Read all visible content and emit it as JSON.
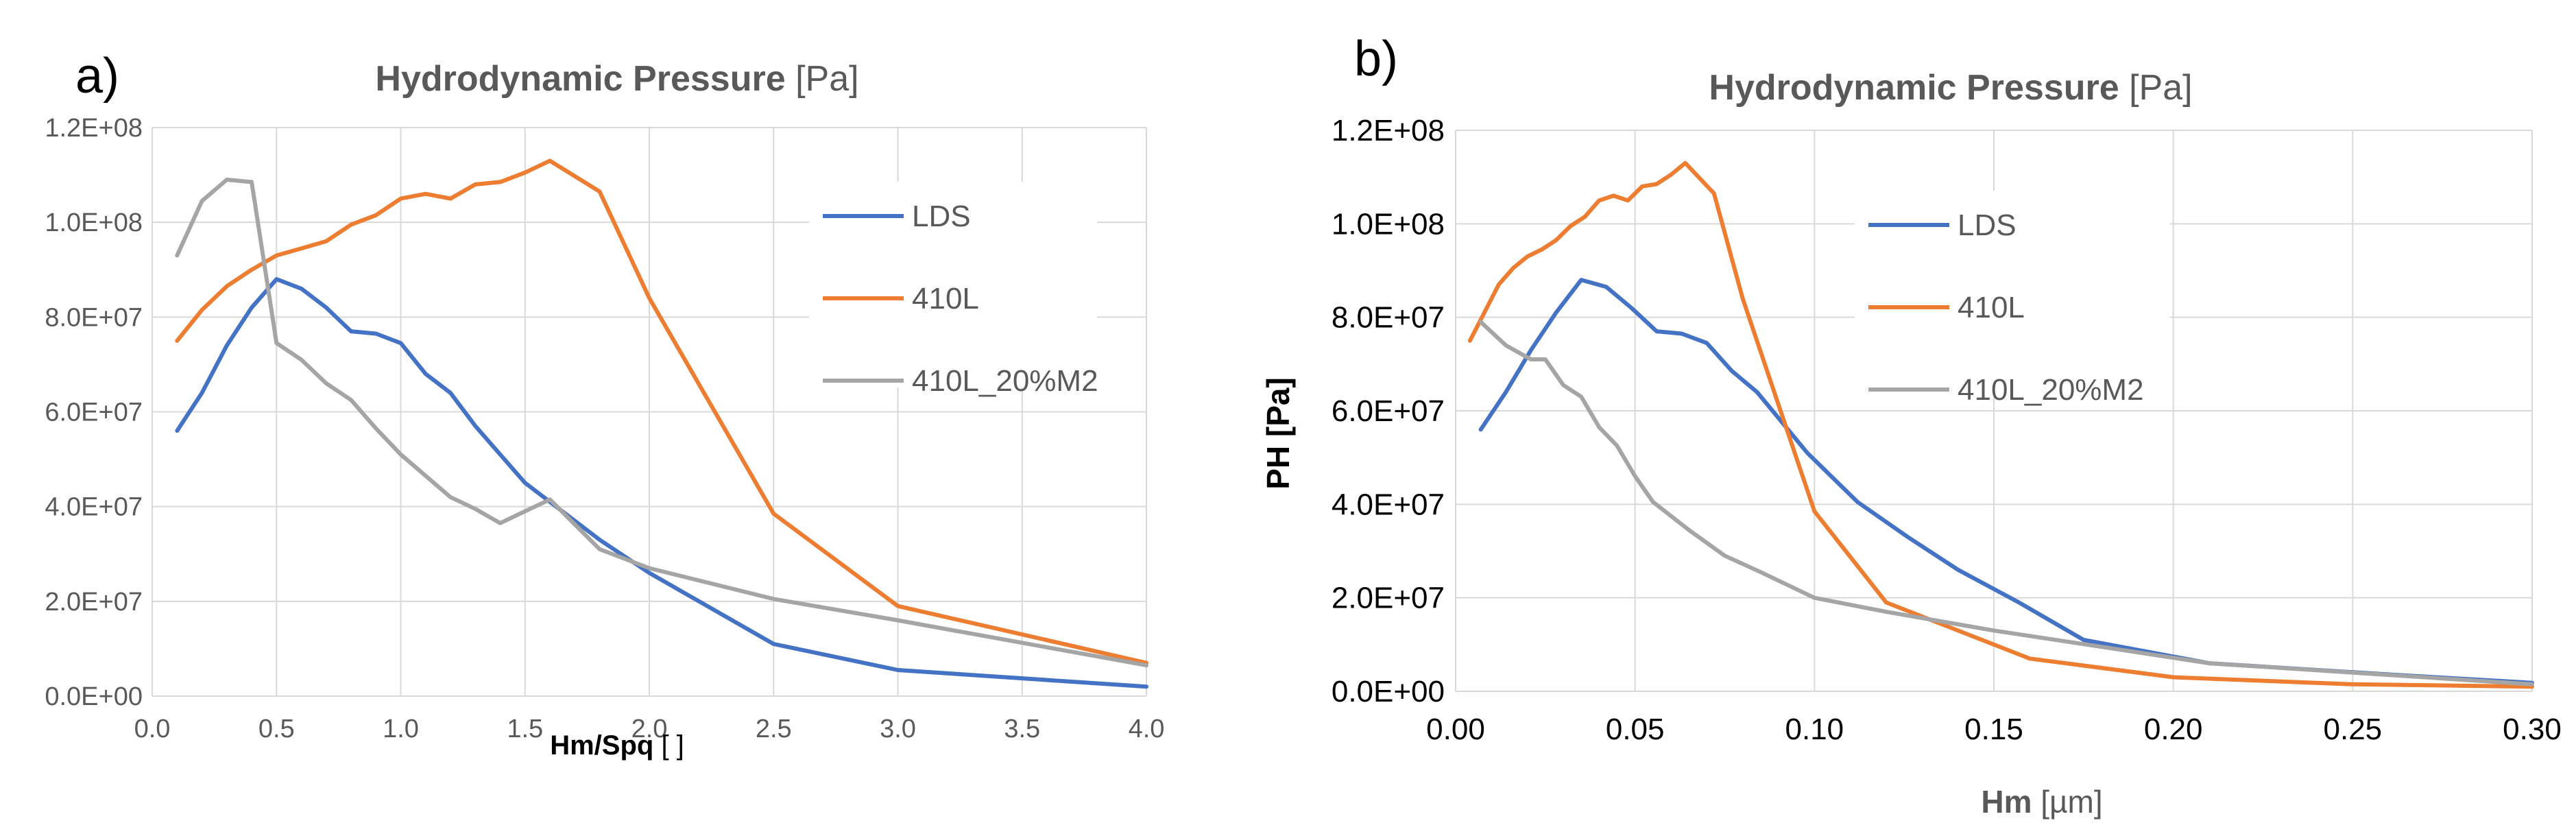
{
  "chart_data": [
    {
      "panel_label": "a)",
      "type": "line",
      "title": "Hydrodynamic Pressure",
      "title_unit": "[Pa]",
      "xlabel": "Hm/Spq",
      "xlabel_unit": "[ ]",
      "ylabel": "",
      "xlim": [
        0.0,
        4.0
      ],
      "ylim": [
        0,
        120000000
      ],
      "x_ticks": [
        "0.0",
        "0.5",
        "1.0",
        "1.5",
        "2.0",
        "2.5",
        "3.0",
        "3.5",
        "4.0"
      ],
      "y_ticks": [
        "0.0E+00",
        "2.0E+07",
        "4.0E+07",
        "6.0E+07",
        "8.0E+07",
        "1.0E+08",
        "1.2E+08"
      ],
      "grid": true,
      "legend": "top-right",
      "series": [
        {
          "name": "LDS",
          "color": "#4472C4",
          "x": [
            0.1,
            0.2,
            0.3,
            0.4,
            0.5,
            0.6,
            0.7,
            0.8,
            0.9,
            1.0,
            1.1,
            1.2,
            1.3,
            1.4,
            1.5,
            1.6,
            1.8,
            2.0,
            2.5,
            3.0,
            4.0
          ],
          "y": [
            56000000,
            64000000,
            74000000,
            82000000,
            88000000,
            86000000,
            82000000,
            77000000,
            76500000,
            74500000,
            68000000,
            64000000,
            57000000,
            51000000,
            45000000,
            41000000,
            33000000,
            26000000,
            11000000,
            5500000,
            2000000
          ]
        },
        {
          "name": "410L",
          "color": "#ED7D31",
          "x": [
            0.1,
            0.2,
            0.3,
            0.4,
            0.5,
            0.6,
            0.7,
            0.8,
            0.9,
            1.0,
            1.1,
            1.2,
            1.3,
            1.4,
            1.5,
            1.6,
            1.8,
            2.0,
            2.5,
            3.0,
            4.0
          ],
          "y": [
            75000000,
            81500000,
            86500000,
            90000000,
            93000000,
            94500000,
            96000000,
            99500000,
            101500000,
            105000000,
            106000000,
            105000000,
            108000000,
            108500000,
            110500000,
            113000000,
            106500000,
            84000000,
            38500000,
            19000000,
            7000000
          ]
        },
        {
          "name": "410L_20%M2",
          "color": "#A5A5A5",
          "x": [
            0.1,
            0.2,
            0.3,
            0.4,
            0.5,
            0.6,
            0.7,
            0.8,
            0.9,
            1.0,
            1.2,
            1.3,
            1.4,
            1.6,
            1.8,
            2.0,
            2.5,
            3.0,
            4.0
          ],
          "y": [
            93000000,
            104500000,
            109000000,
            108500000,
            74500000,
            71000000,
            66000000,
            62500000,
            56500000,
            51000000,
            42000000,
            39500000,
            36500000,
            41500000,
            31000000,
            27000000,
            20500000,
            16000000,
            6500000
          ]
        }
      ]
    },
    {
      "panel_label": "b)",
      "type": "line",
      "title": "Hydrodynamic Pressure",
      "title_unit": "[Pa]",
      "xlabel": "Hm",
      "xlabel_unit": "[µm]",
      "ylabel": "PH  [Pa]",
      "xlim": [
        0.0,
        0.3
      ],
      "ylim": [
        0,
        120000000
      ],
      "x_ticks": [
        "0.00",
        "0.05",
        "0.10",
        "0.15",
        "0.20",
        "0.25",
        "0.30"
      ],
      "y_ticks": [
        "0.0E+00",
        "2.0E+07",
        "4.0E+07",
        "6.0E+07",
        "8.0E+07",
        "1.0E+08",
        "1.2E+08"
      ],
      "grid": true,
      "legend": "top-right",
      "series": [
        {
          "name": "LDS",
          "color": "#4472C4",
          "x": [
            0.007,
            0.014,
            0.021,
            0.028,
            0.035,
            0.042,
            0.049,
            0.056,
            0.063,
            0.07,
            0.077,
            0.084,
            0.098,
            0.112,
            0.126,
            0.14,
            0.157,
            0.175,
            0.21,
            0.262,
            0.3
          ],
          "y": [
            56000000,
            64000000,
            73000000,
            81000000,
            88000000,
            86500000,
            82000000,
            77000000,
            76500000,
            74500000,
            68500000,
            64000000,
            51000000,
            40500000,
            33000000,
            26000000,
            19000000,
            11000000,
            6000000,
            3500000,
            1800000
          ]
        },
        {
          "name": "410L",
          "color": "#ED7D31",
          "x": [
            0.004,
            0.008,
            0.012,
            0.016,
            0.02,
            0.024,
            0.028,
            0.032,
            0.036,
            0.04,
            0.044,
            0.048,
            0.052,
            0.056,
            0.06,
            0.064,
            0.072,
            0.08,
            0.1,
            0.12,
            0.16,
            0.2,
            0.25,
            0.3
          ],
          "y": [
            75000000,
            81000000,
            87000000,
            90500000,
            93000000,
            94500000,
            96500000,
            99500000,
            101500000,
            105000000,
            106000000,
            105000000,
            108000000,
            108500000,
            110500000,
            113000000,
            106500000,
            84000000,
            38500000,
            19000000,
            7000000,
            3000000,
            1500000,
            1000000
          ]
        },
        {
          "name": "410L_20%M2",
          "color": "#A5A5A5",
          "x": [
            0.007,
            0.014,
            0.021,
            0.025,
            0.03,
            0.035,
            0.04,
            0.045,
            0.05,
            0.055,
            0.065,
            0.075,
            0.085,
            0.1,
            0.12,
            0.15,
            0.18,
            0.21,
            0.25,
            0.3
          ],
          "y": [
            79000000,
            74000000,
            71000000,
            71000000,
            65500000,
            63000000,
            56500000,
            52500000,
            46000000,
            40500000,
            34500000,
            29000000,
            25500000,
            20000000,
            17000000,
            13000000,
            9500000,
            6000000,
            4000000,
            1500000
          ]
        }
      ]
    }
  ]
}
